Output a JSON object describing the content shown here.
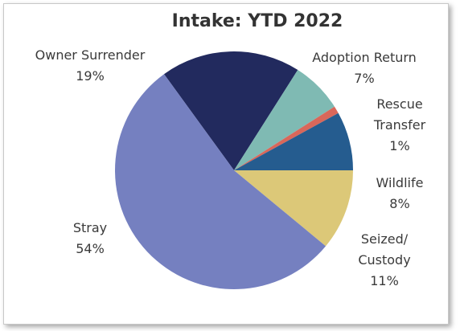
{
  "chart_data": {
    "type": "pie",
    "title": "Intake: YTD 2022",
    "categories": [
      "Owner Surrender",
      "Adoption Return",
      "Rescue Transfer",
      "Wildlife",
      "Seized/ Custody",
      "Stray"
    ],
    "values": [
      19,
      7,
      1,
      8,
      11,
      54
    ],
    "value_labels": [
      "19%",
      "7%",
      "1%",
      "8%",
      "11%",
      "54%"
    ],
    "colors": [
      "#222a5e",
      "#7fbab3",
      "#d9675a",
      "#255c8f",
      "#dcc878",
      "#7580c0"
    ]
  }
}
